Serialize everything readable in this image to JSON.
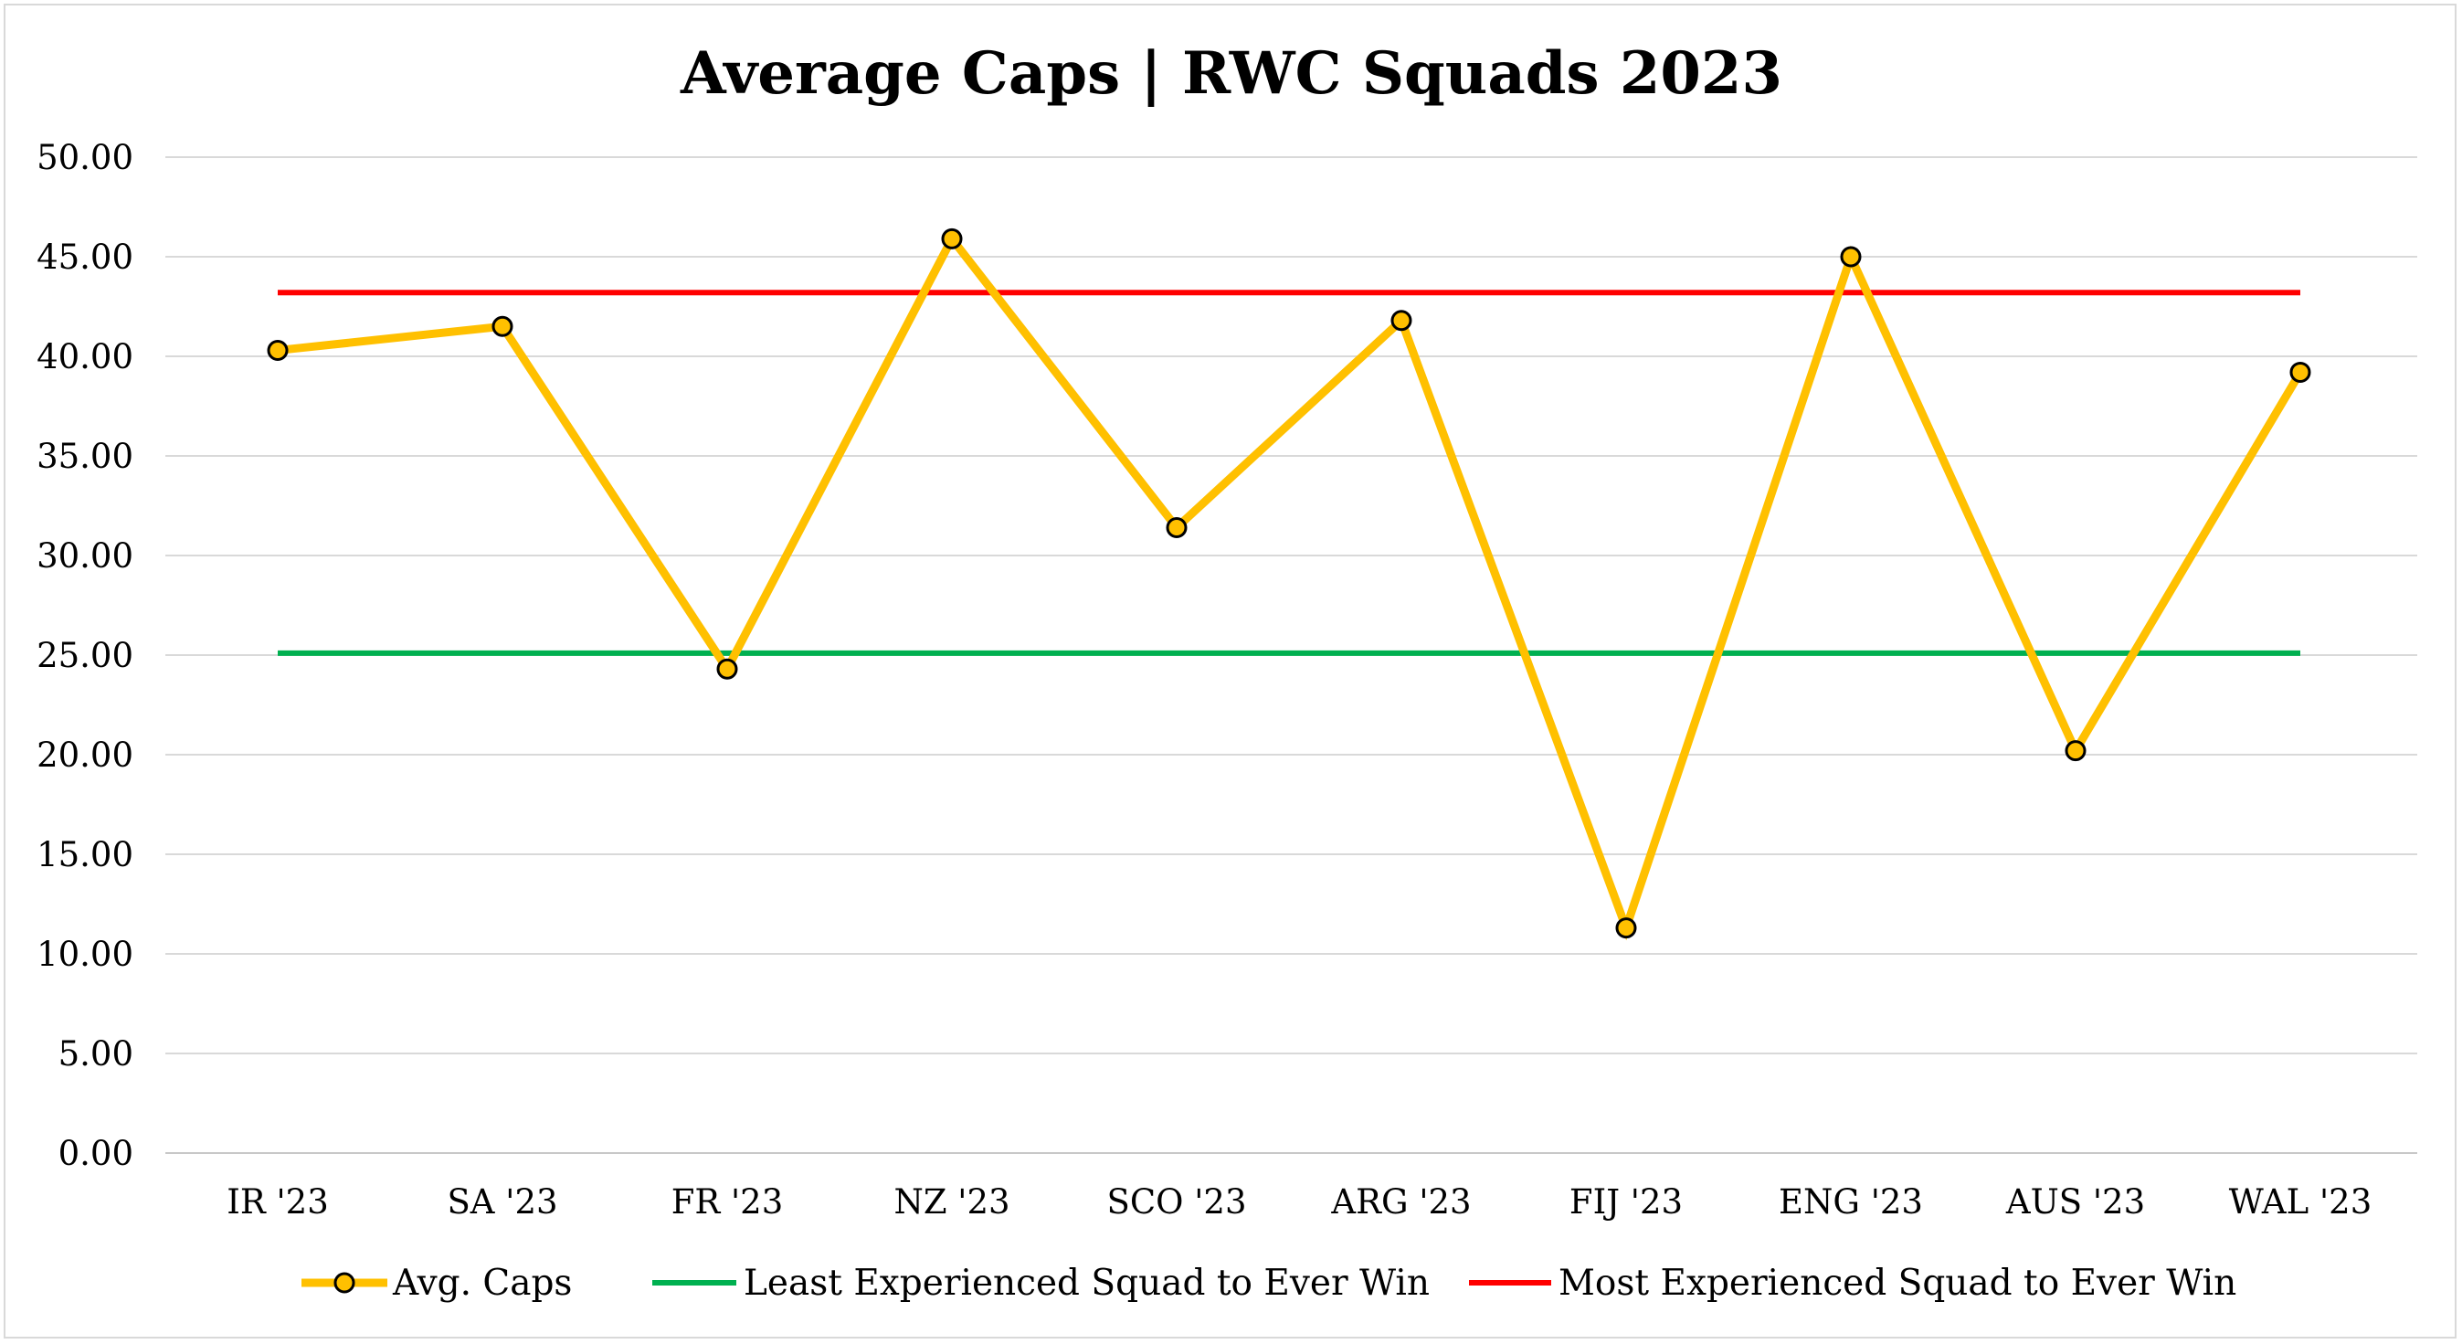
{
  "chart_data": {
    "type": "line",
    "title": "Average Caps | RWC Squads 2023",
    "xlabel": "",
    "ylabel": "",
    "categories": [
      "IR '23",
      "SA '23",
      "FR '23",
      "NZ '23",
      "SCO '23",
      "ARG '23",
      "FIJ '23",
      "ENG '23",
      "AUS '23",
      "WAL '23"
    ],
    "y_ticks": [
      "0.00",
      "5.00",
      "10.00",
      "15.00",
      "20.00",
      "25.00",
      "30.00",
      "35.00",
      "40.00",
      "45.00",
      "50.00"
    ],
    "ylim": [
      0,
      50
    ],
    "grid": true,
    "legend_position": "bottom",
    "series": [
      {
        "name": "Avg. Caps",
        "kind": "line-markers",
        "color": "#FFC000",
        "marker_color": "#FFC000",
        "values": [
          40.3,
          41.5,
          24.3,
          45.9,
          31.4,
          41.8,
          11.3,
          45.0,
          20.2,
          39.2
        ]
      },
      {
        "name": "Least Experienced Squad to Ever Win",
        "kind": "reference",
        "color": "#00B050",
        "values": [
          25.1,
          25.1,
          25.1,
          25.1,
          25.1,
          25.1,
          25.1,
          25.1,
          25.1,
          25.1
        ]
      },
      {
        "name": "Most Experienced Squad to Ever Win",
        "kind": "reference",
        "color": "#FF0000",
        "values": [
          43.2,
          43.2,
          43.2,
          43.2,
          43.2,
          43.2,
          43.2,
          43.2,
          43.2,
          43.2
        ]
      }
    ]
  }
}
